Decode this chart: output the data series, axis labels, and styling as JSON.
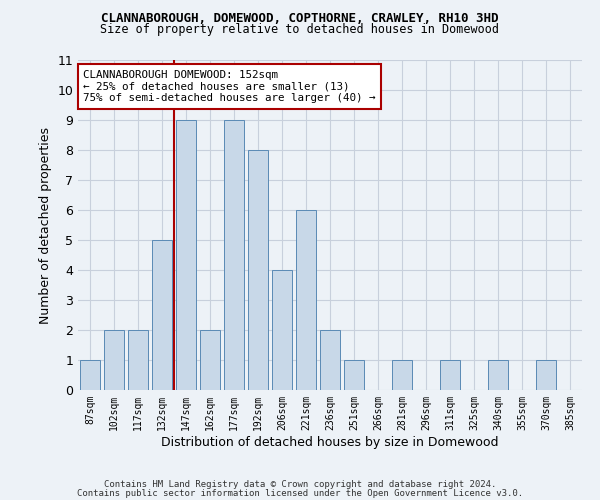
{
  "title": "CLANNABOROUGH, DOMEWOOD, COPTHORNE, CRAWLEY, RH10 3HD",
  "subtitle": "Size of property relative to detached houses in Domewood",
  "xlabel": "Distribution of detached houses by size in Domewood",
  "ylabel": "Number of detached properties",
  "bar_labels": [
    "87sqm",
    "102sqm",
    "117sqm",
    "132sqm",
    "147sqm",
    "162sqm",
    "177sqm",
    "192sqm",
    "206sqm",
    "221sqm",
    "236sqm",
    "251sqm",
    "266sqm",
    "281sqm",
    "296sqm",
    "311sqm",
    "325sqm",
    "340sqm",
    "355sqm",
    "370sqm",
    "385sqm"
  ],
  "bar_heights": [
    1,
    2,
    2,
    5,
    9,
    2,
    9,
    8,
    4,
    6,
    2,
    1,
    0,
    1,
    0,
    1,
    0,
    1,
    0,
    1,
    0
  ],
  "bar_color": "#c8d8e8",
  "bar_edge_color": "#5a8ab5",
  "vline_x_index": 4,
  "vline_color": "#aa0000",
  "annotation_text": "CLANNABOROUGH DOMEWOOD: 152sqm\n← 25% of detached houses are smaller (13)\n75% of semi-detached houses are larger (40) →",
  "annotation_box_color": "#ffffff",
  "annotation_box_edge": "#aa0000",
  "ylim": [
    0,
    11
  ],
  "yticks": [
    0,
    1,
    2,
    3,
    4,
    5,
    6,
    7,
    8,
    9,
    10,
    11
  ],
  "footer1": "Contains HM Land Registry data © Crown copyright and database right 2024.",
  "footer2": "Contains public sector information licensed under the Open Government Licence v3.0.",
  "background_color": "#edf2f7",
  "grid_color": "#c8d0dc"
}
